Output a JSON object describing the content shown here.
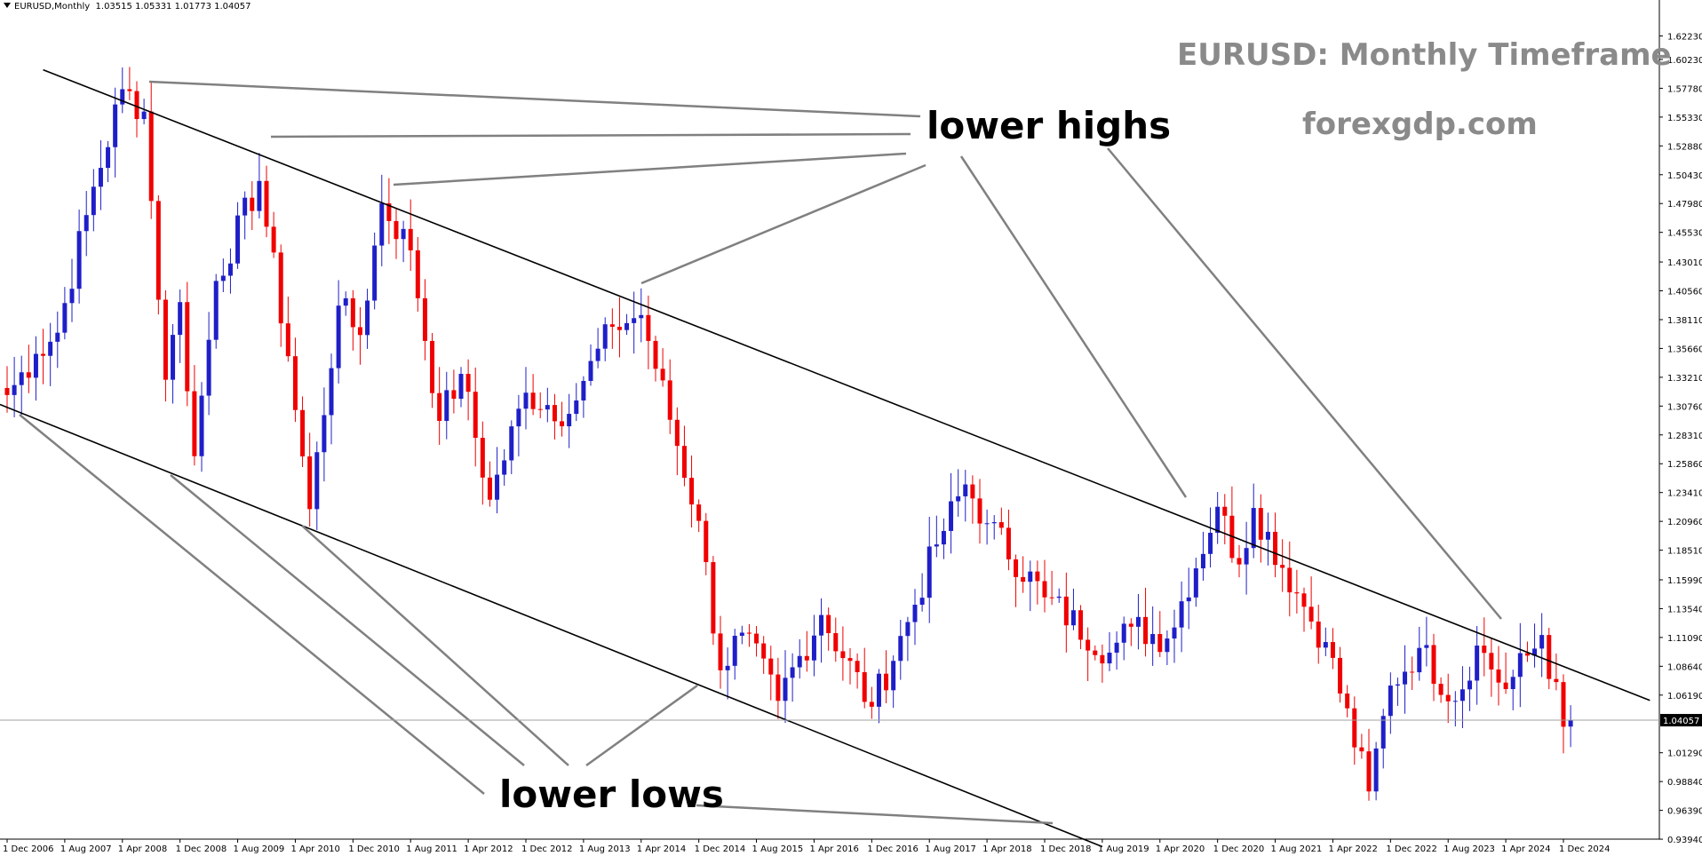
{
  "header": {
    "symbol": "EURUSD,Monthly",
    "ohlc": "1.03515 1.05331 1.01773 1.04057"
  },
  "overlay": {
    "title": "EURUSD: Monthly Timeframe",
    "site": "forexgdp.com",
    "upper_label": "lower highs",
    "lower_label": "lower lows"
  },
  "colors": {
    "bull": "#1f1fc8",
    "bear": "#f00000",
    "trendline": "#000000",
    "annotation_line": "#808080",
    "title": "#8a8a8a"
  },
  "chart_data": {
    "type": "candlestick",
    "title": "EURUSD: Monthly Timeframe",
    "symbol": "EURUSD",
    "timeframe": "Monthly",
    "current_price": "1.04057",
    "ylim": [
      0.93945,
      1.6468
    ],
    "y_ticks": [
      "1.62230",
      "1.60230",
      "1.57780",
      "1.55330",
      "1.52880",
      "1.50430",
      "1.47980",
      "1.45530",
      "1.43010",
      "1.40560",
      "1.38110",
      "1.35660",
      "1.33210",
      "1.30760",
      "1.28310",
      "1.25860",
      "1.23410",
      "1.20960",
      "1.18510",
      "1.15990",
      "1.13540",
      "1.11090",
      "1.08640",
      "1.06190",
      "1.01290",
      "0.98840",
      "0.96390",
      "0.93940"
    ],
    "x_ticks": [
      "1 Dec 2006",
      "1 Aug 2007",
      "1 Apr 2008",
      "1 Dec 2008",
      "1 Aug 2009",
      "1 Apr 2010",
      "1 Dec 2010",
      "1 Aug 2011",
      "1 Apr 2012",
      "1 Dec 2012",
      "1 Aug 2013",
      "1 Apr 2014",
      "1 Dec 2014",
      "1 Aug 2015",
      "1 Apr 2016",
      "1 Dec 2016",
      "1 Aug 2017",
      "1 Apr 2018",
      "1 Dec 2018",
      "1 Aug 2019",
      "1 Apr 2020",
      "1 Dec 2020",
      "1 Aug 2021",
      "1 Apr 2022",
      "1 Dec 2022",
      "1 Aug 2023",
      "1 Apr 2024",
      "1 Dec 2024"
    ],
    "anchors": [
      [
        "2006-12",
        1.317
      ],
      [
        "2007-04",
        1.352
      ],
      [
        "2007-07",
        1.37
      ],
      [
        "2007-11",
        1.47
      ],
      [
        "2008-04",
        1.577
      ],
      [
        "2008-07",
        1.558
      ],
      [
        "2008-10",
        1.33
      ],
      [
        "2008-12",
        1.396
      ],
      [
        "2009-02",
        1.265
      ],
      [
        "2009-05",
        1.414
      ],
      [
        "2009-11",
        1.499
      ],
      [
        "2010-03",
        1.35
      ],
      [
        "2010-06",
        1.22
      ],
      [
        "2010-10",
        1.393
      ],
      [
        "2011-01",
        1.368
      ],
      [
        "2011-04",
        1.48
      ],
      [
        "2011-08",
        1.44
      ],
      [
        "2011-12",
        1.295
      ],
      [
        "2012-03",
        1.335
      ],
      [
        "2012-07",
        1.228
      ],
      [
        "2012-12",
        1.319
      ],
      [
        "2013-06",
        1.301
      ],
      [
        "2013-08",
        1.329
      ],
      [
        "2013-12",
        1.375
      ],
      [
        "2014-04",
        1.385
      ],
      [
        "2014-05",
        1.363
      ],
      [
        "2014-12",
        1.21
      ],
      [
        "2015-03",
        1.083
      ],
      [
        "2015-06",
        1.115
      ],
      [
        "2015-11",
        1.057
      ],
      [
        "2016-05",
        1.13
      ],
      [
        "2016-12",
        1.052
      ],
      [
        "2017-05",
        1.124
      ],
      [
        "2017-09",
        1.19
      ],
      [
        "2018-01",
        1.241
      ],
      [
        "2018-04",
        1.208
      ],
      [
        "2018-12",
        1.145
      ],
      [
        "2019-09",
        1.098
      ],
      [
        "2019-12",
        1.12
      ],
      [
        "2020-05",
        1.11
      ],
      [
        "2020-12",
        1.222
      ],
      [
        "2021-03",
        1.173
      ],
      [
        "2021-05",
        1.221
      ],
      [
        "2021-12",
        1.137
      ],
      [
        "2022-03",
        1.107
      ],
      [
        "2022-09",
        0.98
      ],
      [
        "2022-12",
        1.07
      ],
      [
        "2023-04",
        1.102
      ],
      [
        "2023-09",
        1.057
      ],
      [
        "2023-12",
        1.104
      ],
      [
        "2024-04",
        1.067
      ],
      [
        "2024-09",
        1.113
      ],
      [
        "2024-12",
        1.035
      ]
    ],
    "last_candle": {
      "date": "2025-01",
      "open": 1.03515,
      "high": 1.05331,
      "low": 1.01773,
      "close": 1.04057
    },
    "trendlines": [
      {
        "name": "upper",
        "from": [
          "2007-05",
          1.5935
        ],
        "to": [
          "2025-12",
          1.0574
        ]
      },
      {
        "name": "lower",
        "from": [
          "2006-11",
          1.309
        ],
        "to": [
          "2019-08",
          0.933
        ]
      }
    ]
  }
}
